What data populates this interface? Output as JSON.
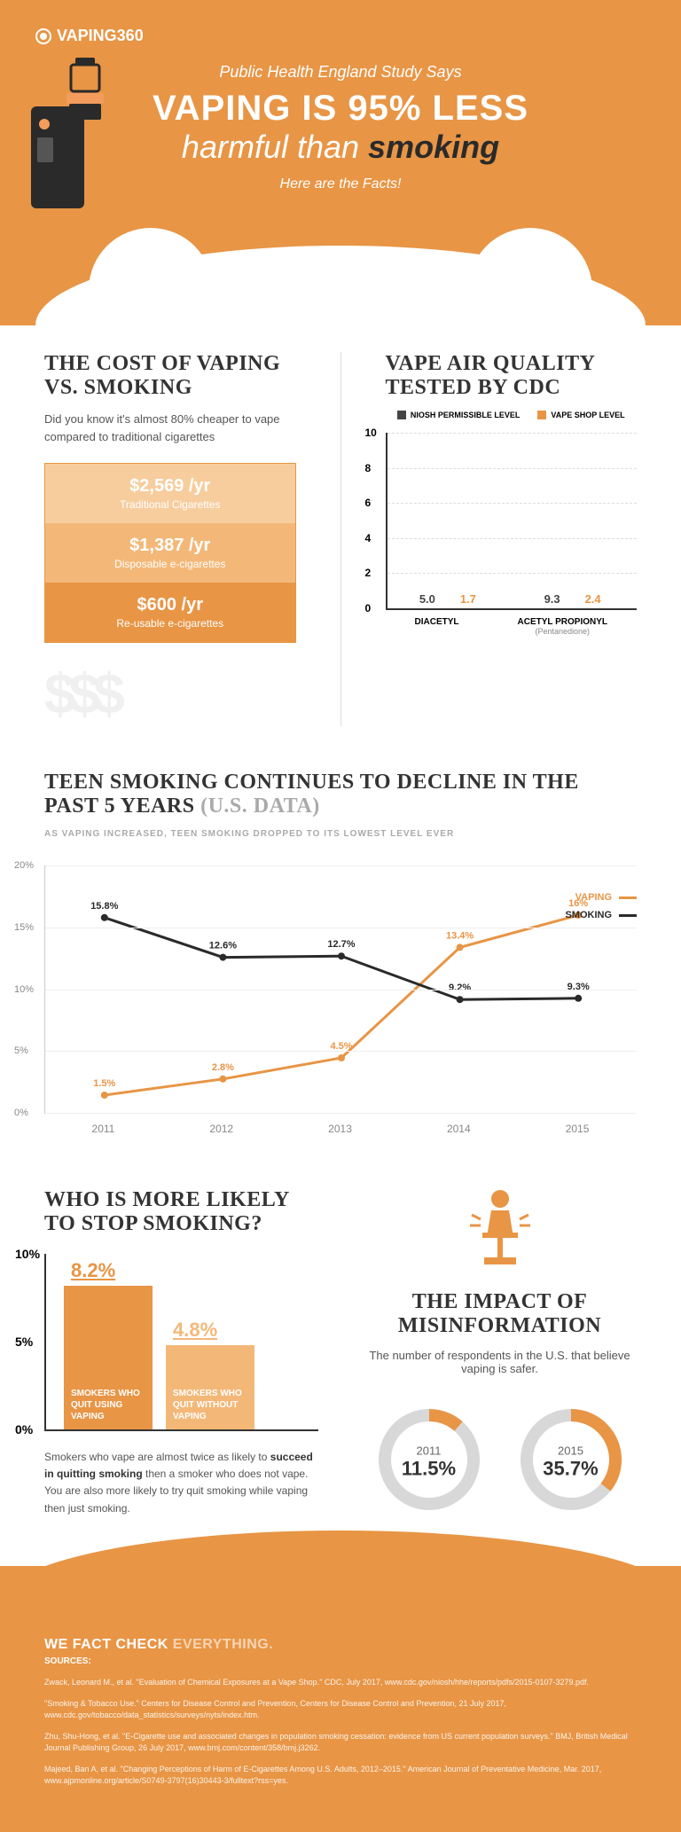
{
  "logo": "VAPING360",
  "hero": {
    "subtitle_top": "Public Health England Study Says",
    "main": "VAPING IS 95% LESS",
    "italic_pre": "harmful than ",
    "italic_emph": "smoking",
    "facts": "Here are the Facts!"
  },
  "colors": {
    "orange_main": "#e89545",
    "orange_dark": "#e07d2b",
    "orange_light": "#f3b878",
    "orange_lighter": "#f7cd9e",
    "grey_dark": "#444444",
    "grey_light": "#cccccc"
  },
  "cost": {
    "title": "THE COST OF VAPING VS. SMOKING",
    "desc": "Did you know it's almost 80% cheaper to vape compared to traditional cigarettes",
    "bars": [
      {
        "value": "$2,569 /yr",
        "label": "Traditional Cigarettes",
        "color": "#f7cd9e"
      },
      {
        "value": "$1,387 /yr",
        "label": "Disposable e-cigarettes",
        "color": "#f3b878"
      },
      {
        "value": "$600 /yr",
        "label": "Re-usable e-cigarettes",
        "color": "#e89545"
      }
    ]
  },
  "air": {
    "title": "VAPE AIR QUALITY TESTED BY CDC",
    "legend": [
      {
        "label": "NIOSH PERMISSIBLE LEVEL",
        "color": "#444444"
      },
      {
        "label": "VAPE SHOP LEVEL",
        "color": "#e89545"
      }
    ],
    "ymax": 10,
    "ytick_step": 2,
    "groups": [
      {
        "label": "DIACETYL",
        "sub": "",
        "bars": [
          {
            "value": 5.0,
            "color": "#444444"
          },
          {
            "value": 1.7,
            "color": "#e89545"
          }
        ]
      },
      {
        "label": "ACETYL PROPIONYL",
        "sub": "(Pentanedione)",
        "bars": [
          {
            "value": 9.3,
            "color": "#444444"
          },
          {
            "value": 2.4,
            "color": "#e89545"
          }
        ]
      }
    ]
  },
  "teen": {
    "title_a": "TEEN SMOKING CONTINUES TO DECLINE IN THE PAST 5 YEARS ",
    "title_b": "(U.S. DATA)",
    "caption": "AS VAPING INCREASED, TEEN SMOKING DROPPED TO ITS LOWEST LEVEL EVER",
    "ymax": 20,
    "ytick_step": 5,
    "years": [
      "2011",
      "2012",
      "2013",
      "2014",
      "2015"
    ],
    "series": [
      {
        "name": "VAPING",
        "color": "#e89545",
        "values": [
          1.5,
          2.8,
          4.5,
          13.4,
          16
        ]
      },
      {
        "name": "SMOKING",
        "color": "#2a2a2a",
        "values": [
          15.8,
          12.6,
          12.7,
          9.2,
          9.3
        ]
      }
    ]
  },
  "quit": {
    "title": "WHO IS MORE LIKELY TO STOP SMOKING?",
    "ymax": 10,
    "ytick_step": 5,
    "bars": [
      {
        "value": 8.2,
        "label": "SMOKERS WHO QUIT USING VAPING",
        "color": "#e89545",
        "val_color": "#e89545"
      },
      {
        "value": 4.8,
        "label": "SMOKERS WHO QUIT WITHOUT VAPING",
        "color": "#f3b878",
        "val_color": "#f3b878"
      }
    ],
    "desc_a": "Smokers who vape are almost twice as likely to ",
    "desc_b": "succeed in quitting smoking",
    "desc_c": " then a smoker who does not vape. You are also more likely to try quit smoking while vaping then just smoking."
  },
  "misinfo": {
    "title": "THE IMPACT OF MISINFORMATION",
    "desc": "The number of respondents in the U.S. that believe vaping is safer.",
    "donuts": [
      {
        "year": "2011",
        "pct": 11.5,
        "label": "11.5%"
      },
      {
        "year": "2015",
        "pct": 35.7,
        "label": "35.7%"
      }
    ],
    "ring_bg": "#d8d8d8",
    "ring_fg": "#e89545"
  },
  "footer": {
    "title_a": "WE FACT CHECK ",
    "title_b": "EVERYTHING.",
    "src": "SOURCES:",
    "cites": [
      "Zwack, Leonard M., et al. \"Evaluation of Chemical Exposures at a Vape Shop.\" CDC, July 2017, www.cdc.gov/niosh/hhe/reports/pdfs/2015-0107-3279.pdf.",
      "\"Smoking & Tobacco Use.\" Centers for Disease Control and Prevention, Centers for Disease Control and Prevention, 21 July 2017, www.cdc.gov/tobacco/data_statistics/surveys/nyts/index.htm.",
      "Zhu, Shu-Hong, et al. \"E-Cigarette use and associated changes in population smoking cessation: evidence from US current population surveys.\" BMJ, British Medical Journal Publishing Group, 26 July 2017, www.bmj.com/content/358/bmj.j3262.",
      "Majeed, Ban A, et al. \"Changing Perceptions of Harm of E-Cigarettes Among U.S. Adults, 2012–2015.\" American Journal of Preventative Medicine, Mar. 2017, www.ajpmonline.org/article/S0749-3797(16)30443-3/fulltext?rss=yes."
    ]
  }
}
